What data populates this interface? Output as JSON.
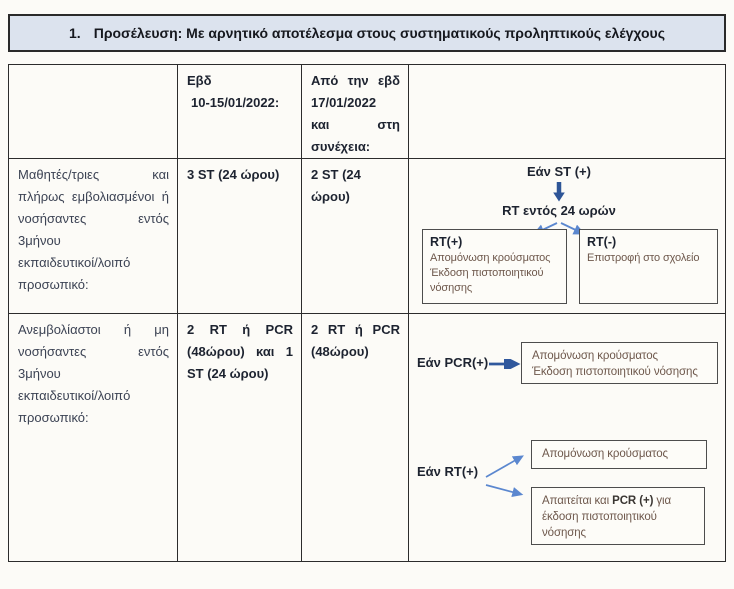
{
  "title": {
    "number": "1.",
    "text": "Προσέλευση: Με αρνητικό αποτέλεσμα στους συστηματικούς προληπτικούς ελέγχους"
  },
  "table": {
    "header": {
      "week1_lines": [
        "Εβδ",
        "10-15/01/2022:"
      ],
      "week2_lines": [
        "Από την εβδ",
        "17/01/2022",
        "και στη",
        "συνέχεια:"
      ]
    },
    "rows": [
      {
        "group_lines": [
          "Μαθητές/τριες και",
          "πλήρως εμβολιασμένοι ή",
          "νοσήσαντες εντός",
          "3μήνου",
          "εκπαιδευτικοί/λοιπό",
          "προσωπικό:"
        ],
        "week1": "3 ST (24 ώρου)",
        "week2": "2 ST (24 ώρου)"
      },
      {
        "group_lines": [
          "Ανεμβολίαστοι ή μη",
          "νοσήσαντες εντός",
          "3μήνου",
          "εκπαιδευτικοί/λοιπό",
          "προσωπικό:"
        ],
        "week1_lines": [
          "2 RT ή PCR",
          "(48ώρου) και 1",
          "ST (24 ώρου)"
        ],
        "week2_lines": [
          "2 RT ή PCR",
          "(48ώρου)"
        ]
      }
    ]
  },
  "flowchart1": {
    "condition": "Εάν ST (+)",
    "step": "RT εντός 24 ωρών",
    "box_positive": {
      "title": "RT(+)",
      "lines": [
        "Απομόνωση κρούσματος",
        "Έκδοση πιστοποιητικού",
        "νόσησης"
      ]
    },
    "box_negative": {
      "title": "RT(-)",
      "lines": [
        "Επιστροφή στο σχολείο"
      ]
    }
  },
  "flowchart2": {
    "condition_pcr": "Εάν PCR(+)",
    "box_pcr_lines": [
      "Απομόνωση κρούσματος",
      "Έκδοση πιστοποιητικού νόσησης"
    ],
    "condition_rt": "Εάν RT(+)",
    "box_rt1_lines": [
      "Απομόνωση κρούσματος"
    ],
    "box_rt2": {
      "prefix": "Απαιτείται και ",
      "bold": "PCR (+)",
      "suffix": " για έκδοση πιστοποιητικού νόσησης"
    }
  },
  "colors": {
    "title_bar_bg": "#dce3ee",
    "table_border": "#2c2c2c",
    "arrow_dark_blue": "#2e5597",
    "arrow_mid_blue": "#30589d",
    "arrow_light_blue": "#5b87cf",
    "box_body_text": "#6e584c"
  }
}
